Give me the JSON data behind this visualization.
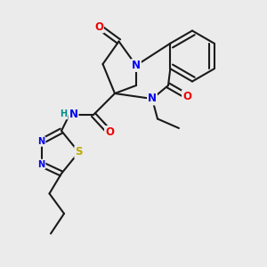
{
  "bg_color": "#ebebeb",
  "bond_color": "#1a1a1a",
  "bond_width": 1.5,
  "atom_colors": {
    "N": "#0000ee",
    "O": "#ee0000",
    "S": "#bbaa00",
    "H_label": "#008888",
    "C": "#1a1a1a"
  },
  "font_size_atom": 8.5,
  "font_size_small": 7.0
}
